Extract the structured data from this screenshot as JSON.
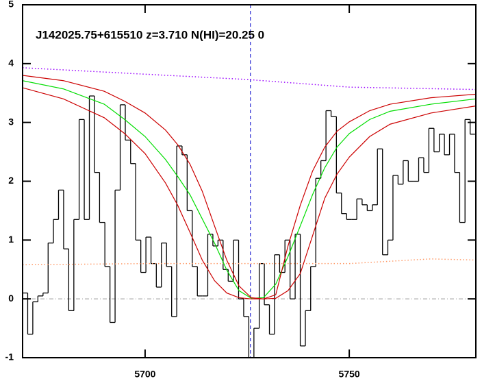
{
  "chart_data": {
    "type": "line",
    "title": "J142025.75+615510 z=3.710 N(HI)=20.25 0",
    "xlim": [
      5670,
      5781
    ],
    "ylim": [
      -1,
      5
    ],
    "xticks": [
      5700,
      5750
    ],
    "yticks": [
      -1,
      0,
      1,
      2,
      3,
      4,
      5
    ],
    "hline": 0,
    "vline": 5725.8,
    "series": [
      {
        "color": "#000000",
        "style": "steps",
        "x": [
          5670.6,
          5671.9,
          5673.1,
          5674.4,
          5675.6,
          5676.9,
          5678.2,
          5679.4,
          5680.7,
          5681.9,
          5683.2,
          5684.5,
          5685.7,
          5687.0,
          5688.2,
          5689.5,
          5690.8,
          5692.0,
          5693.3,
          5694.5,
          5695.8,
          5697.1,
          5698.3,
          5699.6,
          5700.8,
          5702.1,
          5703.4,
          5704.6,
          5705.9,
          5707.1,
          5708.4,
          5709.7,
          5710.9,
          5712.2,
          5713.4,
          5714.7,
          5716.0,
          5717.2,
          5718.5,
          5719.7,
          5721.0,
          5722.3,
          5723.5,
          5724.8,
          5726.0,
          5727.3,
          5728.6,
          5729.8,
          5731.1,
          5732.3,
          5733.6,
          5734.9,
          5736.1,
          5737.4,
          5738.6,
          5739.9,
          5741.2,
          5742.4,
          5743.7,
          5744.9,
          5746.2,
          5747.5,
          5748.7,
          5750.0,
          5751.2,
          5752.5,
          5753.8,
          5755.0,
          5756.3,
          5757.5,
          5758.8,
          5760.1,
          5761.3,
          5762.6,
          5763.8,
          5765.1,
          5766.4,
          5767.6,
          5768.9,
          5770.1,
          5771.4,
          5772.7,
          5773.9,
          5775.2,
          5776.4,
          5777.7,
          5779.0,
          5780.2
        ],
        "values": [
          0.1,
          -0.6,
          -0.05,
          0.05,
          0.1,
          0.95,
          1.35,
          1.85,
          0.85,
          -0.2,
          1.35,
          3.05,
          1.35,
          3.45,
          2.15,
          1.3,
          0.55,
          -0.4,
          1.85,
          3.3,
          2.7,
          2.3,
          1.0,
          0.45,
          1.05,
          0.6,
          0.2,
          0.95,
          0.55,
          -0.3,
          2.6,
          2.45,
          1.5,
          0.55,
          0.05,
          0.05,
          1.1,
          0.9,
          1.0,
          0.5,
          0.3,
          1.0,
          0.0,
          -0.3,
          -1.05,
          -0.5,
          0.6,
          -0.1,
          -0.6,
          0.75,
          0.45,
          1.0,
          0.0,
          1.1,
          -0.8,
          -0.2,
          0.55,
          2.05,
          2.35,
          3.2,
          3.1,
          1.8,
          1.45,
          1.35,
          1.35,
          1.7,
          1.6,
          1.5,
          1.6,
          2.55,
          0.75,
          1.0,
          2.1,
          1.95,
          2.35,
          2.0,
          2.0,
          2.4,
          2.15,
          2.9,
          2.5,
          2.8,
          2.45,
          2.8,
          2.15,
          1.3,
          3.05,
          2.8
        ]
      },
      {
        "color": "#9900ff",
        "style": "dotted",
        "x": [
          5670,
          5700,
          5725,
          5750,
          5781
        ],
        "values": [
          3.93,
          3.82,
          3.73,
          3.6,
          3.56
        ]
      },
      {
        "color": "#ff9966",
        "style": "dotted",
        "x": [
          5670,
          5700,
          5725,
          5750,
          5770,
          5781
        ],
        "values": [
          0.58,
          0.6,
          0.6,
          0.6,
          0.68,
          0.66
        ]
      },
      {
        "color": "#00dd00",
        "style": "solid",
        "x": [
          5670,
          5680,
          5690,
          5695,
          5700,
          5705,
          5708,
          5711,
          5714,
          5717,
          5720,
          5723,
          5726,
          5729,
          5732,
          5735,
          5738,
          5741,
          5744,
          5747,
          5750,
          5755,
          5760,
          5770,
          5781
        ],
        "values": [
          3.71,
          3.57,
          3.31,
          3.05,
          2.76,
          2.37,
          2.08,
          1.77,
          1.36,
          0.95,
          0.49,
          0.14,
          0.01,
          0.02,
          0.25,
          0.72,
          1.24,
          1.77,
          2.23,
          2.58,
          2.81,
          3.05,
          3.19,
          3.31,
          3.4
        ]
      },
      {
        "color": "#cc0000",
        "style": "solid",
        "x": [
          5670,
          5680,
          5690,
          5695,
          5700,
          5705,
          5708,
          5711,
          5714,
          5717,
          5720,
          5723,
          5726,
          5729,
          5732,
          5735,
          5738,
          5741,
          5744,
          5747,
          5750,
          5755,
          5760,
          5770,
          5781
        ],
        "values": [
          3.8,
          3.71,
          3.53,
          3.36,
          3.16,
          2.87,
          2.62,
          2.29,
          1.83,
          1.24,
          0.66,
          0.22,
          0.02,
          0.0,
          0.07,
          0.9,
          1.59,
          2.17,
          2.58,
          2.85,
          3.01,
          3.2,
          3.31,
          3.42,
          3.48
        ]
      },
      {
        "color": "#cc0000",
        "style": "solid",
        "x": [
          5670,
          5680,
          5690,
          5695,
          5700,
          5705,
          5708,
          5711,
          5714,
          5717,
          5720,
          5723,
          5726,
          5729,
          5732,
          5735,
          5738,
          5741,
          5744,
          5747,
          5750,
          5755,
          5760,
          5770,
          5781
        ],
        "values": [
          3.59,
          3.4,
          3.08,
          2.81,
          2.47,
          1.97,
          1.59,
          1.13,
          0.66,
          0.31,
          0.1,
          0.02,
          0.0,
          0.0,
          0.01,
          0.14,
          0.43,
          1.07,
          1.71,
          2.12,
          2.41,
          2.76,
          2.97,
          3.16,
          3.28
        ]
      }
    ]
  }
}
